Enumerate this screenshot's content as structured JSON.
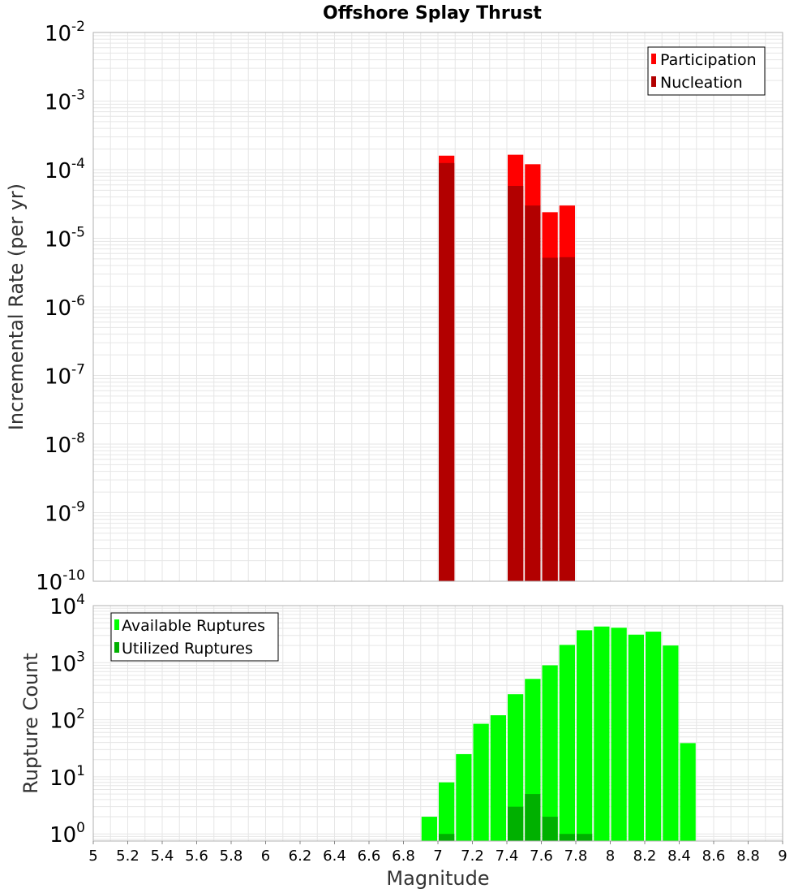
{
  "title": "Offshore Splay Thrust",
  "colors": {
    "participation": "#ff0000",
    "nucleation": "#b20000",
    "available": "#00ff00",
    "utilized": "#00b000",
    "grid": "#e6e6e6",
    "frame": "#b0b0b0"
  },
  "chart_data": [
    {
      "type": "bar",
      "title": "Offshore Splay Thrust",
      "xlabel": "",
      "ylabel": "Incremental Rate (per yr)",
      "xlim": [
        5,
        9
      ],
      "ylim": [
        1e-10,
        0.01
      ],
      "log_y": true,
      "grid": true,
      "legend_position": "top-right",
      "y_ticks": [
        {
          "base": "10",
          "exp": "-10"
        },
        {
          "base": "10",
          "exp": "-9"
        },
        {
          "base": "10",
          "exp": "-8"
        },
        {
          "base": "10",
          "exp": "-7"
        },
        {
          "base": "10",
          "exp": "-6"
        },
        {
          "base": "10",
          "exp": "-5"
        },
        {
          "base": "10",
          "exp": "-4"
        },
        {
          "base": "10",
          "exp": "-3"
        },
        {
          "base": "10",
          "exp": "-2"
        }
      ],
      "bin_width": 0.1,
      "series": [
        {
          "name": "Participation",
          "color": "#ff0000",
          "points": [
            {
              "x": 7.05,
              "y": 0.00016
            },
            {
              "x": 7.45,
              "y": 0.000165
            },
            {
              "x": 7.55,
              "y": 0.00012
            },
            {
              "x": 7.65,
              "y": 2.4e-05
            },
            {
              "x": 7.75,
              "y": 3e-05
            }
          ]
        },
        {
          "name": "Nucleation",
          "color": "#b20000",
          "points": [
            {
              "x": 7.05,
              "y": 0.000125
            },
            {
              "x": 7.45,
              "y": 5.8e-05
            },
            {
              "x": 7.55,
              "y": 3e-05
            },
            {
              "x": 7.65,
              "y": 5.2e-06
            },
            {
              "x": 7.75,
              "y": 5.3e-06
            }
          ]
        }
      ]
    },
    {
      "type": "bar",
      "title": "",
      "xlabel": "Magnitude",
      "ylabel": "Rupture Count",
      "xlim": [
        5,
        9
      ],
      "ylim": [
        0.75,
        10000
      ],
      "log_y": true,
      "grid": true,
      "legend_position": "top-left",
      "x_ticks": [
        "5",
        "5.2",
        "5.4",
        "5.6",
        "5.8",
        "6",
        "6.2",
        "6.4",
        "6.6",
        "6.8",
        "7",
        "7.2",
        "7.4",
        "7.6",
        "7.8",
        "8",
        "8.2",
        "8.4",
        "8.6",
        "8.8",
        "9"
      ],
      "y_ticks": [
        {
          "base": "10",
          "exp": "0"
        },
        {
          "base": "10",
          "exp": "1"
        },
        {
          "base": "10",
          "exp": "2"
        },
        {
          "base": "10",
          "exp": "3"
        },
        {
          "base": "10",
          "exp": "4"
        }
      ],
      "bin_width": 0.1,
      "series": [
        {
          "name": "Available Ruptures",
          "color": "#00ff00",
          "points": [
            {
              "x": 6.95,
              "y": 2
            },
            {
              "x": 7.05,
              "y": 8
            },
            {
              "x": 7.15,
              "y": 25
            },
            {
              "x": 7.25,
              "y": 85
            },
            {
              "x": 7.35,
              "y": 120
            },
            {
              "x": 7.45,
              "y": 280
            },
            {
              "x": 7.55,
              "y": 520
            },
            {
              "x": 7.65,
              "y": 900
            },
            {
              "x": 7.75,
              "y": 2050
            },
            {
              "x": 7.85,
              "y": 3700
            },
            {
              "x": 7.95,
              "y": 4300
            },
            {
              "x": 8.05,
              "y": 4100
            },
            {
              "x": 8.15,
              "y": 3100
            },
            {
              "x": 8.25,
              "y": 3500
            },
            {
              "x": 8.35,
              "y": 2000
            },
            {
              "x": 8.45,
              "y": 39
            }
          ]
        },
        {
          "name": "Utilized Ruptures",
          "color": "#00b000",
          "points": [
            {
              "x": 7.05,
              "y": 1
            },
            {
              "x": 7.45,
              "y": 3
            },
            {
              "x": 7.55,
              "y": 5
            },
            {
              "x": 7.65,
              "y": 2
            },
            {
              "x": 7.75,
              "y": 1
            },
            {
              "x": 7.85,
              "y": 1
            }
          ]
        }
      ]
    }
  ]
}
